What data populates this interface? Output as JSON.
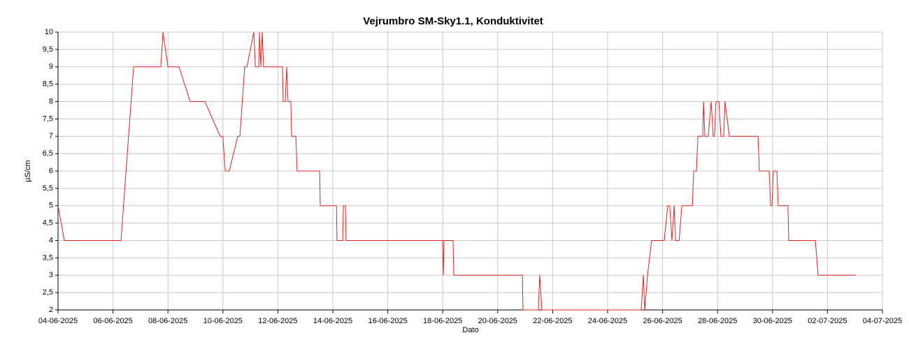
{
  "chart_data": {
    "type": "line",
    "title": "Vejrumbro SM-Sky1.1, Konduktivitet",
    "x_label": "Dato",
    "y_label": "µS/cm",
    "grid": true,
    "xlim": [
      "2025-06-04",
      "2025-07-04"
    ],
    "xticks": [
      {
        "value": "2025-06-04",
        "label": "04-06-2025"
      },
      {
        "value": "2025-06-06",
        "label": "06-06-2025"
      },
      {
        "value": "2025-06-08",
        "label": "08-06-2025"
      },
      {
        "value": "2025-06-10",
        "label": "10-06-2025"
      },
      {
        "value": "2025-06-12",
        "label": "12-06-2025"
      },
      {
        "value": "2025-06-14",
        "label": "14-06-2025"
      },
      {
        "value": "2025-06-16",
        "label": "16-06-2025"
      },
      {
        "value": "2025-06-18",
        "label": "18-06-2025"
      },
      {
        "value": "2025-06-20",
        "label": "20-06-2025"
      },
      {
        "value": "2025-06-22",
        "label": "22-06-2025"
      },
      {
        "value": "2025-06-24",
        "label": "24-06-2025"
      },
      {
        "value": "2025-06-26",
        "label": "26-06-2025"
      },
      {
        "value": "2025-06-28",
        "label": "28-06-2025"
      },
      {
        "value": "2025-06-30",
        "label": "30-06-2025"
      },
      {
        "value": "2025-07-02",
        "label": "02-07-2025"
      },
      {
        "value": "2025-07-04",
        "label": "04-07-2025"
      }
    ],
    "ylim": [
      2,
      10
    ],
    "yticks": [
      2,
      {
        "value": 2.5,
        "label": "2,5"
      },
      3,
      {
        "value": 3.5,
        "label": "3,5"
      },
      4,
      {
        "value": 4.5,
        "label": "4,5"
      },
      5,
      {
        "value": 5.5,
        "label": "5,5"
      },
      6,
      {
        "value": 6.5,
        "label": "6,5"
      },
      7,
      {
        "value": 7.5,
        "label": "7,5"
      },
      8,
      {
        "value": 8.5,
        "label": "8,5"
      },
      9,
      {
        "value": 9.5,
        "label": "9,5"
      },
      10
    ],
    "x": [
      "2025-06-04T00:00",
      "2025-06-04T05:30",
      "2025-06-06T07:00",
      "2025-06-06T18:00",
      "2025-06-07T17:45",
      "2025-06-07T19:40",
      "2025-06-08T00:00",
      "2025-06-08T09:40",
      "2025-06-08T19:25",
      "2025-06-09T08:15",
      "2025-06-09T21:40",
      "2025-06-10T00:00",
      "2025-06-10T02:00",
      "2025-06-10T05:30",
      "2025-06-10T13:00",
      "2025-06-10T14:50",
      "2025-06-10T19:00",
      "2025-06-10T21:00",
      "2025-06-11T03:00",
      "2025-06-11T04:20",
      "2025-06-11T07:20",
      "2025-06-11T08:00",
      "2025-06-11T09:10",
      "2025-06-11T10:20",
      "2025-06-11T11:30",
      "2025-06-12T04:00",
      "2025-06-12T04:40",
      "2025-06-12T06:30",
      "2025-06-12T07:40",
      "2025-06-12T08:50",
      "2025-06-12T11:20",
      "2025-06-12T12:00",
      "2025-06-12T15:40",
      "2025-06-12T16:50",
      "2025-06-13T12:30",
      "2025-06-13T13:00",
      "2025-06-14T03:10",
      "2025-06-14T03:40",
      "2025-06-14T08:40",
      "2025-06-14T09:10",
      "2025-06-14T11:00",
      "2025-06-14T11:30",
      "2025-06-17T23:50",
      "2025-06-18T00:30",
      "2025-06-18T01:10",
      "2025-06-18T09:00",
      "2025-06-18T09:40",
      "2025-06-20T21:35",
      "2025-06-20T22:05",
      "2025-06-21T11:30",
      "2025-06-21T12:40",
      "2025-06-21T14:35",
      "2025-06-25T05:20",
      "2025-06-25T07:10",
      "2025-06-25T08:25",
      "2025-06-25T10:50",
      "2025-06-25T14:25",
      "2025-06-26T01:25",
      "2025-06-26T04:30",
      "2025-06-26T06:15",
      "2025-06-26T08:10",
      "2025-06-26T10:05",
      "2025-06-26T11:20",
      "2025-06-26T14:25",
      "2025-06-26T16:50",
      "2025-06-27T02:00",
      "2025-06-27T03:10",
      "2025-06-27T05:35",
      "2025-06-27T06:50",
      "2025-06-27T11:05",
      "2025-06-27T11:45",
      "2025-06-27T12:55",
      "2025-06-27T15:50",
      "2025-06-27T18:25",
      "2025-06-27T20:10",
      "2025-06-27T21:20",
      "2025-06-27T22:35",
      "2025-06-28T01:10",
      "2025-06-28T02:55",
      "2025-06-28T05:20",
      "2025-06-28T06:30",
      "2025-06-28T10:20",
      "2025-06-29T11:20",
      "2025-06-29T12:30",
      "2025-06-29T21:05",
      "2025-06-29T22:20",
      "2025-06-29T23:30",
      "2025-06-30T00:45",
      "2025-06-30T03:50",
      "2025-06-30T05:00",
      "2025-06-30T13:30",
      "2025-06-30T14:10",
      "2025-07-01T13:25",
      "2025-07-01T15:50",
      "2025-07-03T00:45"
    ],
    "series": [
      {
        "color": "#e02020",
        "values": [
          5,
          4,
          4,
          9,
          9,
          10,
          9,
          9,
          8,
          8,
          7,
          7,
          6,
          6,
          7,
          7,
          9,
          9,
          10,
          9,
          9,
          10,
          9,
          10,
          9,
          9,
          8,
          8,
          9,
          8,
          8,
          7,
          7,
          6,
          6,
          5,
          5,
          4,
          4,
          5,
          5,
          4,
          4,
          3,
          4,
          4,
          3,
          3,
          2,
          2,
          3,
          2,
          2,
          3,
          2,
          3,
          4,
          4,
          5,
          5,
          4,
          5,
          4,
          4,
          5,
          5,
          6,
          6,
          7,
          7,
          8,
          7,
          7,
          8,
          7,
          7,
          8,
          8,
          7,
          7,
          8,
          7,
          7,
          6,
          6,
          5,
          5,
          6,
          6,
          5,
          5,
          4,
          4,
          3,
          3
        ]
      }
    ]
  }
}
